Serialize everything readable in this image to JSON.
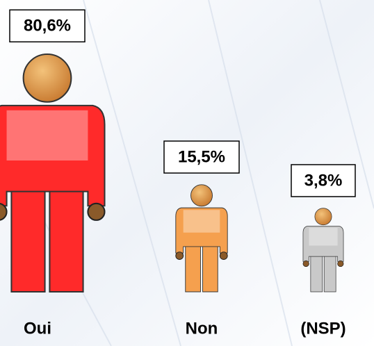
{
  "chart_data": {
    "type": "pictograph",
    "categories": [
      "Oui",
      "Non",
      "(NSP)"
    ],
    "values": [
      80.6,
      15.5,
      3.8
    ],
    "value_labels": [
      "80,6%",
      "15,5%",
      "3,8%"
    ],
    "colors": [
      "#ff2a2a",
      "#f5a04e",
      "#c9c9c9"
    ]
  }
}
